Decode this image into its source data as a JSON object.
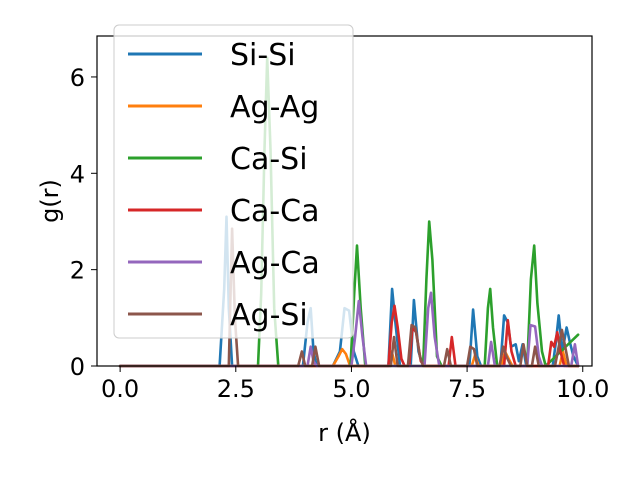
{
  "chart_data": {
    "type": "line",
    "xlabel": "r (Å)",
    "ylabel": "g(r)",
    "xlim": [
      -0.5,
      10.2
    ],
    "ylim": [
      0,
      6.85
    ],
    "xticks": [
      0.0,
      2.5,
      5.0,
      7.5,
      10.0
    ],
    "xtick_labels": [
      "0.0",
      "2.5",
      "5.0",
      "7.5",
      "10.0"
    ],
    "yticks": [
      0,
      2,
      4,
      6
    ],
    "ytick_labels": [
      "0",
      "2",
      "4",
      "6"
    ],
    "grid": false,
    "legend_position": "upper-left",
    "series": [
      {
        "name": "Si-Si",
        "color": "#1f77b4",
        "points": [
          [
            0,
            0
          ],
          [
            2.15,
            0
          ],
          [
            2.25,
            1.6
          ],
          [
            2.3,
            3.1
          ],
          [
            2.35,
            1.2
          ],
          [
            2.42,
            0
          ],
          [
            3.95,
            0
          ],
          [
            4.05,
            0.9
          ],
          [
            4.12,
            1.2
          ],
          [
            4.18,
            0.3
          ],
          [
            4.25,
            0
          ],
          [
            4.6,
            0
          ],
          [
            4.75,
            0.3
          ],
          [
            4.85,
            1.2
          ],
          [
            4.95,
            1.15
          ],
          [
            5.05,
            0.3
          ],
          [
            5.15,
            0
          ],
          [
            5.8,
            0
          ],
          [
            5.88,
            1.6
          ],
          [
            5.95,
            0.9
          ],
          [
            6.05,
            0
          ],
          [
            6.28,
            0
          ],
          [
            6.35,
            1.37
          ],
          [
            6.45,
            0.3
          ],
          [
            6.55,
            0
          ],
          [
            7.55,
            0
          ],
          [
            7.63,
            1.17
          ],
          [
            7.72,
            0.2
          ],
          [
            7.8,
            0
          ],
          [
            8.22,
            0
          ],
          [
            8.3,
            1.05
          ],
          [
            8.38,
            0.9
          ],
          [
            8.45,
            0.4
          ],
          [
            8.55,
            0.45
          ],
          [
            8.62,
            0.1
          ],
          [
            8.7,
            0.45
          ],
          [
            8.78,
            0
          ],
          [
            9.35,
            0
          ],
          [
            9.42,
            0.5
          ],
          [
            9.48,
            1.05
          ],
          [
            9.56,
            0.3
          ],
          [
            9.65,
            0.8
          ],
          [
            9.72,
            0.5
          ],
          [
            9.8,
            0.2
          ],
          [
            9.9,
            0
          ]
        ]
      },
      {
        "name": "Ag-Ag",
        "color": "#ff7f0e",
        "points": [
          [
            0,
            0
          ],
          [
            4.6,
            0
          ],
          [
            4.72,
            0.2
          ],
          [
            4.8,
            0.35
          ],
          [
            4.88,
            0.25
          ],
          [
            4.97,
            0
          ],
          [
            5.8,
            0
          ],
          [
            5.87,
            0.3
          ],
          [
            5.95,
            0
          ],
          [
            7.6,
            0
          ],
          [
            7.67,
            0.22
          ],
          [
            7.75,
            0
          ],
          [
            8.25,
            0
          ],
          [
            8.32,
            0.3
          ],
          [
            8.4,
            0.15
          ],
          [
            8.48,
            0
          ],
          [
            9.5,
            0
          ],
          [
            9.57,
            0.3
          ],
          [
            9.65,
            0
          ],
          [
            9.9,
            0
          ]
        ]
      },
      {
        "name": "Ca-Si",
        "color": "#2ca02c",
        "points": [
          [
            0,
            0
          ],
          [
            2.98,
            0
          ],
          [
            3.05,
            1.5
          ],
          [
            3.12,
            4.5
          ],
          [
            3.18,
            6.4
          ],
          [
            3.25,
            4.5
          ],
          [
            3.33,
            1.2
          ],
          [
            3.42,
            0
          ],
          [
            4.98,
            0
          ],
          [
            5.06,
            1.5
          ],
          [
            5.12,
            2.5
          ],
          [
            5.2,
            1.2
          ],
          [
            5.3,
            0
          ],
          [
            6.55,
            0
          ],
          [
            6.62,
            1.8
          ],
          [
            6.68,
            3.0
          ],
          [
            6.75,
            2.2
          ],
          [
            6.85,
            0.2
          ],
          [
            6.95,
            0
          ],
          [
            7.88,
            0
          ],
          [
            7.95,
            1.2
          ],
          [
            8.0,
            1.6
          ],
          [
            8.06,
            0.8
          ],
          [
            8.15,
            0
          ],
          [
            8.8,
            0
          ],
          [
            8.88,
            1.8
          ],
          [
            8.95,
            2.5
          ],
          [
            9.02,
            1.3
          ],
          [
            9.12,
            0.3
          ],
          [
            9.2,
            0
          ],
          [
            9.9,
            0.65
          ]
        ]
      },
      {
        "name": "Ca-Ca",
        "color": "#d62728",
        "points": [
          [
            0,
            0
          ],
          [
            5.8,
            0
          ],
          [
            5.87,
            0.9
          ],
          [
            5.93,
            1.25
          ],
          [
            6.0,
            0.8
          ],
          [
            6.08,
            0.15
          ],
          [
            6.15,
            0
          ],
          [
            6.25,
            0
          ],
          [
            6.32,
            0.8
          ],
          [
            6.4,
            0.7
          ],
          [
            6.5,
            0.1
          ],
          [
            6.58,
            0
          ],
          [
            7.1,
            0
          ],
          [
            7.17,
            0.6
          ],
          [
            7.25,
            0
          ],
          [
            8.3,
            0
          ],
          [
            8.38,
            0.95
          ],
          [
            8.46,
            0.3
          ],
          [
            8.55,
            0
          ],
          [
            9.25,
            0
          ],
          [
            9.32,
            0.5
          ],
          [
            9.38,
            0.4
          ],
          [
            9.45,
            0.7
          ],
          [
            9.52,
            0.3
          ],
          [
            9.6,
            0
          ],
          [
            9.9,
            0
          ]
        ]
      },
      {
        "name": "Ag-Ca",
        "color": "#9467bd",
        "points": [
          [
            0,
            0
          ],
          [
            4.05,
            0
          ],
          [
            4.12,
            0.4
          ],
          [
            4.18,
            0.1
          ],
          [
            4.25,
            0
          ],
          [
            5.0,
            0
          ],
          [
            5.08,
            0.6
          ],
          [
            5.16,
            1.35
          ],
          [
            5.24,
            0.6
          ],
          [
            5.32,
            0
          ],
          [
            6.58,
            0
          ],
          [
            6.66,
            1.2
          ],
          [
            6.72,
            1.52
          ],
          [
            6.8,
            0.6
          ],
          [
            6.9,
            0
          ],
          [
            7.95,
            0
          ],
          [
            8.02,
            0.5
          ],
          [
            8.1,
            0
          ],
          [
            8.8,
            0
          ],
          [
            8.87,
            0.85
          ],
          [
            8.97,
            0.82
          ],
          [
            9.05,
            0.2
          ],
          [
            9.12,
            0
          ],
          [
            9.75,
            0
          ],
          [
            9.83,
            0.45
          ],
          [
            9.9,
            0
          ]
        ]
      },
      {
        "name": "Ag-Si",
        "color": "#8c564b",
        "points": [
          [
            0,
            0
          ],
          [
            2.35,
            0
          ],
          [
            2.42,
            2.85
          ],
          [
            2.48,
            1.0
          ],
          [
            2.55,
            0
          ],
          [
            3.85,
            0
          ],
          [
            3.93,
            0.3
          ],
          [
            4.0,
            0
          ],
          [
            4.15,
            0
          ],
          [
            4.22,
            0.4
          ],
          [
            4.3,
            0
          ],
          [
            5.85,
            0
          ],
          [
            5.92,
            0.6
          ],
          [
            6.0,
            0
          ],
          [
            6.22,
            0
          ],
          [
            6.3,
            0.85
          ],
          [
            6.38,
            0.8
          ],
          [
            6.48,
            0.2
          ],
          [
            6.55,
            0
          ],
          [
            7.0,
            0
          ],
          [
            7.07,
            0.35
          ],
          [
            7.15,
            0
          ],
          [
            7.5,
            0
          ],
          [
            7.57,
            0.4
          ],
          [
            7.65,
            0.35
          ],
          [
            7.72,
            0
          ],
          [
            8.2,
            0
          ],
          [
            8.28,
            0.4
          ],
          [
            8.35,
            0.2
          ],
          [
            8.45,
            0
          ],
          [
            8.65,
            0
          ],
          [
            8.72,
            0.45
          ],
          [
            8.8,
            0
          ],
          [
            8.9,
            0
          ],
          [
            8.97,
            0.4
          ],
          [
            9.05,
            0
          ],
          [
            9.4,
            0
          ],
          [
            9.48,
            0.4
          ],
          [
            9.55,
            0.75
          ],
          [
            9.62,
            0.4
          ],
          [
            9.7,
            0
          ],
          [
            9.9,
            0
          ]
        ]
      }
    ]
  }
}
